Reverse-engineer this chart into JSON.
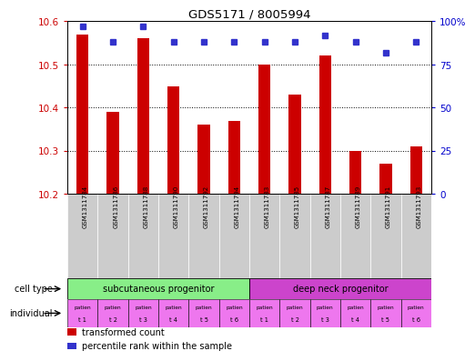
{
  "title": "GDS5171 / 8005994",
  "samples": [
    "GSM1311784",
    "GSM1311786",
    "GSM1311788",
    "GSM1311790",
    "GSM1311792",
    "GSM1311794",
    "GSM1311783",
    "GSM1311785",
    "GSM1311787",
    "GSM1311789",
    "GSM1311791",
    "GSM1311793"
  ],
  "transformed_count": [
    10.57,
    10.39,
    10.56,
    10.45,
    10.36,
    10.37,
    10.5,
    10.43,
    10.52,
    10.3,
    10.27,
    10.31
  ],
  "percentile_rank": [
    97,
    88,
    97,
    88,
    88,
    88,
    88,
    88,
    92,
    88,
    82,
    88
  ],
  "ylim_left": [
    10.2,
    10.6
  ],
  "ylim_right": [
    0,
    100
  ],
  "yticks_left": [
    10.2,
    10.3,
    10.4,
    10.5,
    10.6
  ],
  "yticks_right": [
    0,
    25,
    50,
    75,
    100
  ],
  "ytick_labels_right": [
    "0",
    "25",
    "50",
    "75",
    "100%"
  ],
  "bar_color": "#cc0000",
  "dot_color": "#3333cc",
  "cell_type_groups": [
    {
      "label": "subcutaneous progenitor",
      "start": 0,
      "end": 6,
      "color": "#88ee88"
    },
    {
      "label": "deep neck progenitor",
      "start": 6,
      "end": 12,
      "color": "#cc44cc"
    }
  ],
  "individual_labels": [
    "t 1",
    "t 2",
    "t 3",
    "t 4",
    "t 5",
    "t 6",
    "t 1",
    "t 2",
    "t 3",
    "t 4",
    "t 5",
    "t 6"
  ],
  "individual_top": "patien",
  "individual_color": "#ee77ee",
  "xticklabel_bg": "#cccccc",
  "legend_items": [
    {
      "color": "#cc0000",
      "label": "transformed count"
    },
    {
      "color": "#3333cc",
      "label": "percentile rank within the sample"
    }
  ],
  "background_color": "white",
  "ylabel_right_color": "#0000cc",
  "ylabel_left_color": "#cc0000"
}
